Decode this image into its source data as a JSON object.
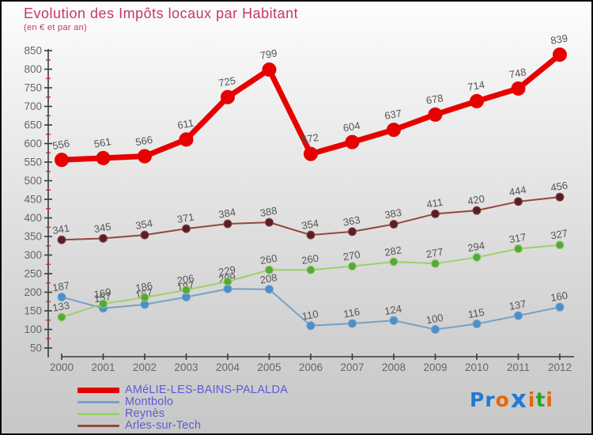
{
  "title": "Evolution des Impôts locaux par Habitant",
  "subtitle": "(en € et par an)",
  "colors": {
    "title": "#c73667",
    "legend_text": "#5b5bd8",
    "axis": "#3a3a3a",
    "minor_tick": "#d42222",
    "value_label": "#555555",
    "axis_label": "#666666"
  },
  "chart_data": {
    "type": "line",
    "x": [
      2000,
      2001,
      2002,
      2003,
      2004,
      2005,
      2006,
      2007,
      2008,
      2009,
      2010,
      2011,
      2012
    ],
    "series": [
      {
        "name": "AMéLIE-LES-BAINS-PALALDA",
        "color": "#e60000",
        "dot_color": "#e60000",
        "thick": true,
        "values": [
          556,
          561,
          566,
          611,
          725,
          799,
          572,
          604,
          637,
          678,
          714,
          748,
          839
        ]
      },
      {
        "name": "Montbolo",
        "color": "#74a1c9",
        "dot_color": "#4b8fcc",
        "thick": false,
        "values": [
          187,
          157,
          167,
          187,
          209,
          208,
          110,
          116,
          124,
          100,
          115,
          137,
          160
        ]
      },
      {
        "name": "Reynès",
        "color": "#9ecf6a",
        "dot_color": "#55a83c",
        "thick": false,
        "values": [
          133,
          169,
          186,
          206,
          229,
          260,
          260,
          270,
          282,
          277,
          294,
          317,
          327
        ]
      },
      {
        "name": "Arles-sur-Tech",
        "color": "#94463c",
        "dot_color": "#571f28",
        "thick": false,
        "values": [
          341,
          345,
          354,
          371,
          384,
          388,
          354,
          363,
          383,
          411,
          420,
          444,
          456
        ]
      }
    ],
    "ylim": [
      50,
      850
    ],
    "ytick_step": 50,
    "grid": false,
    "legend_position": "bottom-left"
  },
  "logo": {
    "letters": [
      {
        "ch": "P",
        "color": "#1f7ad4",
        "big": false
      },
      {
        "ch": "r",
        "color": "#1f7ad4",
        "big": false
      },
      {
        "ch": "o",
        "color": "#e8650c",
        "big": false
      },
      {
        "ch": "x",
        "color": "#1f7ad4",
        "big": true
      },
      {
        "ch": "i",
        "color": "#e8650c",
        "big": false
      },
      {
        "ch": "t",
        "color": "#33a02c",
        "big": false
      },
      {
        "ch": "i",
        "color": "#e8650c",
        "big": false
      }
    ]
  }
}
